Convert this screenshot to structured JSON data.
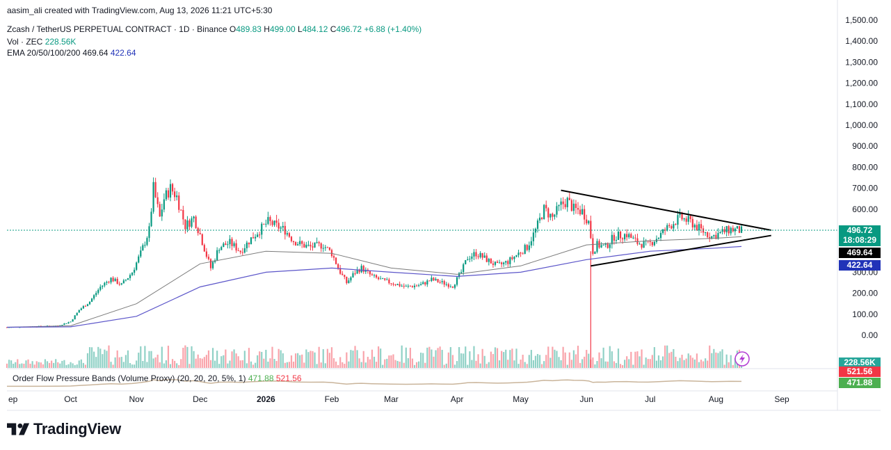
{
  "header": {
    "credit": "aasim_ali created with TradingView.com, Aug 13, 2026 11:21 UTC+5:30",
    "symbol": "Zcash / TetherUS PERPETUAL CONTRACT · 1D · Binance",
    "ohlc": {
      "o_label": "O",
      "o": "489.83",
      "h_label": "H",
      "h": "499.00",
      "l_label": "L",
      "l": "484.12",
      "c_label": "C",
      "c": "496.72",
      "change": "+6.88 (+1.40%)"
    },
    "vol_label": "Vol · ZEC",
    "vol_value": "228.56K",
    "ema_label": "EMA 20/50/100/200",
    "ema_1": "469.64",
    "ema_2": "422.64"
  },
  "indicator": {
    "label": "Order Flow Pressure Bands (Volume Proxy) (20, 20, 20, 5%, 1)",
    "v1": "471.88",
    "v2": "521.56"
  },
  "badges": {
    "price": "496.72",
    "countdown": "18:08:29",
    "ema_1": "469.64",
    "ema_2": "422.64",
    "vol": "228.56K",
    "ofpb_r": "521.56",
    "ofpb_g": "471.88"
  },
  "brand": "TradingView",
  "colors": {
    "up": "#089981",
    "down": "#f23645",
    "ema_slow": "#5b55c9",
    "ema_mid": "#7a7a7a"
  },
  "chart_data": {
    "type": "candlestick",
    "y_ticks": [
      "1,500.00",
      "1,400.00",
      "1,300.00",
      "1,200.00",
      "1,100.00",
      "1,000.00",
      "900.00",
      "800.00",
      "700.00",
      "600.00",
      "500.00",
      "400.00",
      "300.00",
      "200.00",
      "100.00",
      "0.00"
    ],
    "y_tick_values": [
      1500,
      1400,
      1300,
      1200,
      1100,
      1000,
      900,
      800,
      700,
      600,
      500,
      400,
      300,
      200,
      100,
      0
    ],
    "x_ticks": [
      "ep",
      "Oct",
      "Nov",
      "Dec",
      "2026",
      "Feb",
      "Mar",
      "Apr",
      "May",
      "Jun",
      "Jul",
      "Aug",
      "Sep"
    ],
    "x_tick_dates": [
      "2025-09-01",
      "2025-10-01",
      "2025-11-01",
      "2025-12-01",
      "2026-01-01",
      "2026-02-01",
      "2026-03-01",
      "2026-04-01",
      "2026-05-01",
      "2026-06-01",
      "2026-07-01",
      "2026-08-01",
      "2026-09-01"
    ],
    "ylim": [
      0,
      1500
    ],
    "close_path": [
      [
        "2025-09-01",
        38
      ],
      [
        "2025-09-15",
        42
      ],
      [
        "2025-09-25",
        45
      ],
      [
        "2025-10-01",
        65
      ],
      [
        "2025-10-05",
        120
      ],
      [
        "2025-10-10",
        160
      ],
      [
        "2025-10-15",
        230
      ],
      [
        "2025-10-20",
        270
      ],
      [
        "2025-10-25",
        240
      ],
      [
        "2025-10-30",
        300
      ],
      [
        "2025-11-03",
        390
      ],
      [
        "2025-11-07",
        500
      ],
      [
        "2025-11-09",
        700
      ],
      [
        "2025-11-12",
        560
      ],
      [
        "2025-11-14",
        650
      ],
      [
        "2025-11-17",
        700
      ],
      [
        "2025-11-20",
        660
      ],
      [
        "2025-11-24",
        520
      ],
      [
        "2025-11-28",
        560
      ],
      [
        "2025-12-01",
        480
      ],
      [
        "2025-12-04",
        380
      ],
      [
        "2025-12-06",
        320
      ],
      [
        "2025-12-10",
        420
      ],
      [
        "2025-12-15",
        440
      ],
      [
        "2025-12-20",
        400
      ],
      [
        "2025-12-25",
        460
      ],
      [
        "2025-12-28",
        490
      ],
      [
        "2026-01-02",
        540
      ],
      [
        "2026-01-06",
        520
      ],
      [
        "2026-01-10",
        500
      ],
      [
        "2026-01-14",
        450
      ],
      [
        "2026-01-18",
        430
      ],
      [
        "2026-01-22",
        420
      ],
      [
        "2026-01-28",
        430
      ],
      [
        "2026-02-01",
        390
      ],
      [
        "2026-02-05",
        300
      ],
      [
        "2026-02-08",
        250
      ],
      [
        "2026-02-12",
        300
      ],
      [
        "2026-02-15",
        320
      ],
      [
        "2026-02-20",
        280
      ],
      [
        "2026-02-25",
        260
      ],
      [
        "2026-03-01",
        250
      ],
      [
        "2026-03-08",
        230
      ],
      [
        "2026-03-15",
        240
      ],
      [
        "2026-03-20",
        265
      ],
      [
        "2026-03-25",
        250
      ],
      [
        "2026-03-30",
        235
      ],
      [
        "2026-04-03",
        300
      ],
      [
        "2026-04-06",
        370
      ],
      [
        "2026-04-10",
        390
      ],
      [
        "2026-04-15",
        360
      ],
      [
        "2026-04-20",
        330
      ],
      [
        "2026-04-25",
        350
      ],
      [
        "2026-04-30",
        390
      ],
      [
        "2026-05-04",
        420
      ],
      [
        "2026-05-08",
        500
      ],
      [
        "2026-05-12",
        600
      ],
      [
        "2026-05-16",
        560
      ],
      [
        "2026-05-20",
        620
      ],
      [
        "2026-05-23",
        640
      ],
      [
        "2026-05-26",
        600
      ],
      [
        "2026-05-30",
        590
      ],
      [
        "2026-06-02",
        540
      ],
      [
        "2026-06-04",
        400
      ],
      [
        "2026-06-06",
        430
      ],
      [
        "2026-06-10",
        420
      ],
      [
        "2026-06-14",
        470
      ],
      [
        "2026-06-20",
        480
      ],
      [
        "2026-06-25",
        440
      ],
      [
        "2026-06-30",
        430
      ],
      [
        "2026-07-05",
        470
      ],
      [
        "2026-07-10",
        520
      ],
      [
        "2026-07-15",
        560
      ],
      [
        "2026-07-20",
        540
      ],
      [
        "2026-07-25",
        500
      ],
      [
        "2026-07-30",
        470
      ],
      [
        "2026-08-04",
        490
      ],
      [
        "2026-08-08",
        505
      ],
      [
        "2026-08-13",
        497
      ]
    ],
    "ema_100_path": [
      [
        "2025-09-01",
        38
      ],
      [
        "2025-10-01",
        45
      ],
      [
        "2025-11-01",
        150
      ],
      [
        "2025-12-01",
        340
      ],
      [
        "2026-01-01",
        400
      ],
      [
        "2026-02-01",
        390
      ],
      [
        "2026-03-01",
        320
      ],
      [
        "2026-04-01",
        290
      ],
      [
        "2026-05-01",
        330
      ],
      [
        "2026-06-01",
        430
      ],
      [
        "2026-07-01",
        450
      ],
      [
        "2026-08-01",
        462
      ],
      [
        "2026-08-13",
        469.64
      ]
    ],
    "ema_200_path": [
      [
        "2025-09-01",
        38
      ],
      [
        "2025-10-01",
        40
      ],
      [
        "2025-11-01",
        90
      ],
      [
        "2025-12-01",
        230
      ],
      [
        "2026-01-01",
        300
      ],
      [
        "2026-02-01",
        320
      ],
      [
        "2026-03-01",
        300
      ],
      [
        "2026-04-01",
        280
      ],
      [
        "2026-05-01",
        300
      ],
      [
        "2026-06-01",
        360
      ],
      [
        "2026-07-01",
        400
      ],
      [
        "2026-08-01",
        415
      ],
      [
        "2026-08-13",
        422.64
      ]
    ],
    "trendlines": [
      {
        "from": [
          "2026-05-20",
          690
        ],
        "to": [
          "2026-08-27",
          500
        ]
      },
      {
        "from": [
          "2026-06-03",
          330
        ],
        "to": [
          "2026-08-27",
          475
        ]
      }
    ],
    "ohlc_last": {
      "o": 489.83,
      "h": 499.0,
      "l": 484.12,
      "c": 496.72
    }
  }
}
